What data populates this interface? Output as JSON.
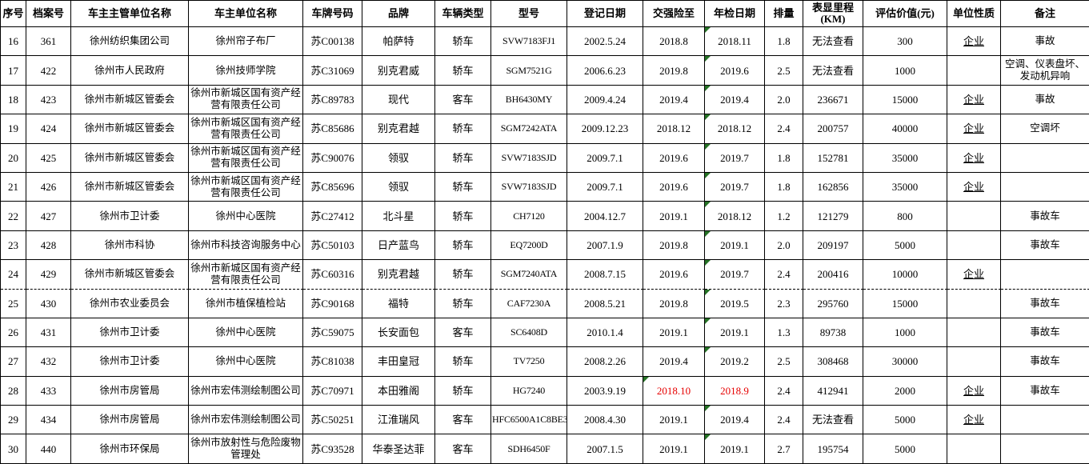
{
  "colors": {
    "marker_green": "#267326",
    "alert_red": "#e60000",
    "grid_line": "#000000",
    "background": "#ffffff"
  },
  "table": {
    "columns": [
      {
        "key": "seq",
        "label": "序号"
      },
      {
        "key": "archive-no",
        "label": "档案号"
      },
      {
        "key": "supervisor-unit",
        "label": "车主主管单位名称"
      },
      {
        "key": "owner-unit",
        "label": "车主单位名称"
      },
      {
        "key": "plate-no",
        "label": "车牌号码"
      },
      {
        "key": "brand",
        "label": "品牌"
      },
      {
        "key": "vehicle-type",
        "label": "车辆类型"
      },
      {
        "key": "model",
        "label": "型号"
      },
      {
        "key": "register-date",
        "label": "登记日期"
      },
      {
        "key": "insurance-until",
        "label": "交强险至"
      },
      {
        "key": "inspection-date",
        "label": "年检日期"
      },
      {
        "key": "displacement",
        "label": "排量"
      },
      {
        "key": "mileage",
        "label": "表显里程",
        "sub": "(KM)"
      },
      {
        "key": "assessed-value",
        "label": "评估价值(元)"
      },
      {
        "key": "unit-nature",
        "label": "单位性质"
      },
      {
        "key": "remark",
        "label": "备注"
      }
    ],
    "rows": [
      {
        "cells": [
          "16",
          "361",
          "徐州纺织集团公司",
          "徐州帘子布厂",
          "苏C00138",
          "帕萨特",
          "轿车",
          "SVW7183FJ1",
          "2002.5.24",
          "2018.8",
          "2018.11",
          "1.8",
          "无法查看",
          "300",
          "企业",
          "事故"
        ],
        "marker_cols": [
          10
        ],
        "red_cols": [],
        "pagebreak_after": false
      },
      {
        "cells": [
          "17",
          "422",
          "徐州市人民政府",
          "徐州技师学院",
          "苏C31069",
          "别克君威",
          "轿车",
          "SGM7521G",
          "2006.6.23",
          "2019.8",
          "2019.6",
          "2.5",
          "无法查看",
          "1000",
          "",
          "空调、仪表盘坏、发动机异响"
        ],
        "marker_cols": [
          10
        ],
        "red_cols": [],
        "pagebreak_after": false
      },
      {
        "cells": [
          "18",
          "423",
          "徐州市新城区管委会",
          "徐州市新城区国有资产经营有限责任公司",
          "苏C89783",
          "现代",
          "客车",
          "BH6430MY",
          "2009.4.24",
          "2019.4",
          "2019.4",
          "2.0",
          "236671",
          "15000",
          "企业",
          "事故"
        ],
        "marker_cols": [
          10
        ],
        "red_cols": [],
        "pagebreak_after": false
      },
      {
        "cells": [
          "19",
          "424",
          "徐州市新城区管委会",
          "徐州市新城区国有资产经营有限责任公司",
          "苏C85686",
          "别克君越",
          "轿车",
          "SGM7242ATA",
          "2009.12.23",
          "2018.12",
          "2018.12",
          "2.4",
          "200757",
          "40000",
          "企业",
          "空调坏"
        ],
        "marker_cols": [
          10
        ],
        "red_cols": [],
        "pagebreak_after": false
      },
      {
        "cells": [
          "20",
          "425",
          "徐州市新城区管委会",
          "徐州市新城区国有资产经营有限责任公司",
          "苏C90076",
          "领驭",
          "轿车",
          "SVW7183SJD",
          "2009.7.1",
          "2019.6",
          "2019.7",
          "1.8",
          "152781",
          "35000",
          "企业",
          ""
        ],
        "marker_cols": [
          10
        ],
        "red_cols": [],
        "pagebreak_after": false
      },
      {
        "cells": [
          "21",
          "426",
          "徐州市新城区管委会",
          "徐州市新城区国有资产经营有限责任公司",
          "苏C85696",
          "领驭",
          "轿车",
          "SVW7183SJD",
          "2009.7.1",
          "2019.6",
          "2019.7",
          "1.8",
          "162856",
          "35000",
          "企业",
          ""
        ],
        "marker_cols": [
          10
        ],
        "red_cols": [],
        "pagebreak_after": false
      },
      {
        "cells": [
          "22",
          "427",
          "徐州市卫计委",
          "徐州中心医院",
          "苏C27412",
          "北斗星",
          "轿车",
          "CH7120",
          "2004.12.7",
          "2019.1",
          "2018.12",
          "1.2",
          "121279",
          "800",
          "",
          "事故车"
        ],
        "marker_cols": [
          10
        ],
        "red_cols": [],
        "pagebreak_after": false
      },
      {
        "cells": [
          "23",
          "428",
          "徐州市科协",
          "徐州市科技咨询服务中心",
          "苏C50103",
          "日产蓝鸟",
          "轿车",
          "EQ7200D",
          "2007.1.9",
          "2019.8",
          "2019.1",
          "2.0",
          "209197",
          "5000",
          "",
          "事故车"
        ],
        "marker_cols": [
          10
        ],
        "red_cols": [],
        "pagebreak_after": false
      },
      {
        "cells": [
          "24",
          "429",
          "徐州市新城区管委会",
          "徐州市新城区国有资产经营有限责任公司",
          "苏C60316",
          "别克君越",
          "轿车",
          "SGM7240ATA",
          "2008.7.15",
          "2019.6",
          "2019.7",
          "2.4",
          "200416",
          "10000",
          "企业",
          ""
        ],
        "marker_cols": [
          10
        ],
        "red_cols": [],
        "pagebreak_after": true
      },
      {
        "cells": [
          "25",
          "430",
          "徐州市农业委员会",
          "徐州市植保植检站",
          "苏C90168",
          "福特",
          "轿车",
          "CAF7230A",
          "2008.5.21",
          "2019.8",
          "2019.5",
          "2.3",
          "295760",
          "15000",
          "",
          "事故车"
        ],
        "marker_cols": [
          10
        ],
        "red_cols": [],
        "pagebreak_after": false
      },
      {
        "cells": [
          "26",
          "431",
          "徐州市卫计委",
          "徐州中心医院",
          "苏C59075",
          "长安面包",
          "客车",
          "SC6408D",
          "2010.1.4",
          "2019.1",
          "2019.1",
          "1.3",
          "89738",
          "1000",
          "",
          "事故车"
        ],
        "marker_cols": [
          10
        ],
        "red_cols": [],
        "pagebreak_after": false
      },
      {
        "cells": [
          "27",
          "432",
          "徐州市卫计委",
          "徐州中心医院",
          "苏C81038",
          "丰田皇冠",
          "轿车",
          "TV7250",
          "2008.2.26",
          "2019.4",
          "2019.2",
          "2.5",
          "308468",
          "30000",
          "",
          "事故车"
        ],
        "marker_cols": [
          10
        ],
        "red_cols": [],
        "pagebreak_after": false
      },
      {
        "cells": [
          "28",
          "433",
          "徐州市房管局",
          "徐州市宏伟测绘制图公司",
          "苏C70971",
          "本田雅阁",
          "轿车",
          "HG7240",
          "2003.9.19",
          "2018.10",
          "2018.9",
          "2.4",
          "412941",
          "2000",
          "企业",
          "事故车"
        ],
        "marker_cols": [
          9
        ],
        "red_cols": [
          9,
          10
        ],
        "pagebreak_after": false
      },
      {
        "cells": [
          "29",
          "434",
          "徐州市房管局",
          "徐州市宏伟测绘制图公司",
          "苏C50251",
          "江淮瑞风",
          "客车",
          "HFC6500A1C8BE3",
          "2008.4.30",
          "2019.1",
          "2019.4",
          "2.4",
          "无法查看",
          "5000",
          "企业",
          ""
        ],
        "marker_cols": [
          10
        ],
        "red_cols": [],
        "pagebreak_after": false
      },
      {
        "cells": [
          "30",
          "440",
          "徐州市环保局",
          "徐州市放射性与危险废物管理处",
          "苏C93528",
          "华泰圣达菲",
          "客车",
          "SDH6450F",
          "2007.1.5",
          "2019.1",
          "2019.1",
          "2.7",
          "195754",
          "5000",
          "",
          ""
        ],
        "marker_cols": [
          10
        ],
        "red_cols": [],
        "pagebreak_after": false
      }
    ]
  }
}
